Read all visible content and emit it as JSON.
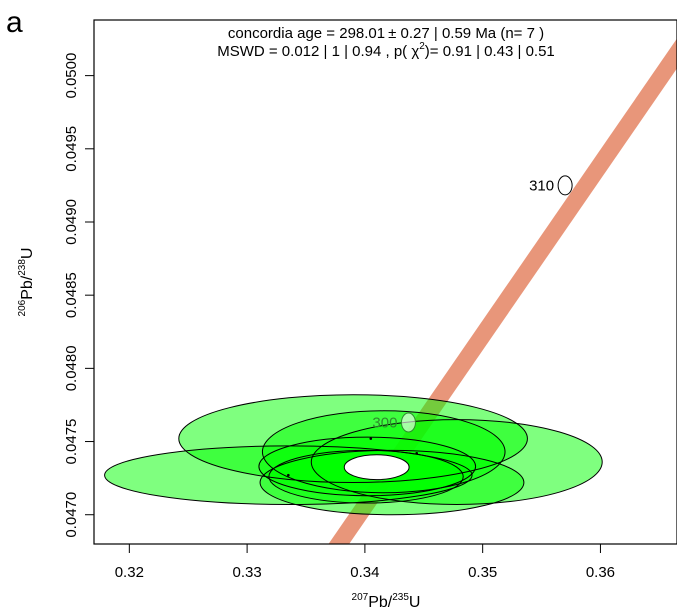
{
  "panel_label": "a",
  "chart_data": {
    "type": "scatter",
    "title_prefix": "concordia age = 298.01",
    "title_pm": "±",
    "title_rest": " 0.27 | 0.59 Ma (n= 7 )",
    "subtitle_prefix": "MSWD = 0.012 | 1 | 0.94 , p( χ",
    "subtitle_sup": "2",
    "subtitle_rest": ")= 0.91 | 0.43 | 0.51",
    "xlabel": {
      "sup": "207",
      "main": "Pb/",
      "sup2": "235",
      "main2": "U"
    },
    "ylabel": {
      "sup": "206",
      "main": "Pb/",
      "sup2": "238",
      "main2": "U"
    },
    "xlim": [
      0.317,
      0.3665
    ],
    "ylim": [
      0.0468,
      0.05038
    ],
    "xticks": [
      "0.32",
      "0.33",
      "0.34",
      "0.35",
      "0.36"
    ],
    "yticks": [
      "0.0470",
      "0.0475",
      "0.0480",
      "0.0485",
      "0.0490",
      "0.0495",
      "0.0500"
    ],
    "concordia": {
      "points": [
        [
          0.3335,
          0.0463
        ],
        [
          0.3712,
          0.0507
        ]
      ],
      "color": "#E8967A",
      "age_markers": [
        {
          "label": "300",
          "x": 0.3437,
          "y": 0.04763,
          "label_color": "#2E8B2E"
        },
        {
          "label": "310",
          "x": 0.357,
          "y": 0.04925,
          "label_color": "#000000"
        }
      ]
    },
    "ellipses": [
      {
        "cx": 0.339,
        "cy": 0.04752,
        "rx": 0.0148,
        "ry": 0.0003,
        "angle": 0
      },
      {
        "cx": 0.3478,
        "cy": 0.04736,
        "rx": 0.01235,
        "ry": 0.00029,
        "angle": 0
      },
      {
        "cx": 0.3416,
        "cy": 0.04743,
        "rx": 0.0103,
        "ry": 0.00028,
        "angle": 0
      },
      {
        "cx": 0.3335,
        "cy": 0.04727,
        "rx": 0.0156,
        "ry": 0.0002,
        "angle": 0
      },
      {
        "cx": 0.3402,
        "cy": 0.04733,
        "rx": 0.0092,
        "ry": 0.0002,
        "angle": 0
      },
      {
        "cx": 0.3401,
        "cy": 0.04726,
        "rx": 0.00825,
        "ry": 0.00018,
        "angle": 0
      },
      {
        "cx": 0.3423,
        "cy": 0.04722,
        "rx": 0.0112,
        "ry": 0.00022,
        "angle": 0
      }
    ],
    "concordia_age_ellipse": {
      "cx": 0.341,
      "cy": 0.047325,
      "rx": 0.00275,
      "ry": 8.5e-05
    },
    "centers": [
      [
        0.3335,
        0.04727
      ],
      [
        0.3405,
        0.04752
      ],
      [
        0.3444,
        0.04742
      ]
    ],
    "ellipse_fill": "#00FF00",
    "ellipse_fill_opacity": 0.5,
    "grid": false,
    "legend": "none"
  }
}
